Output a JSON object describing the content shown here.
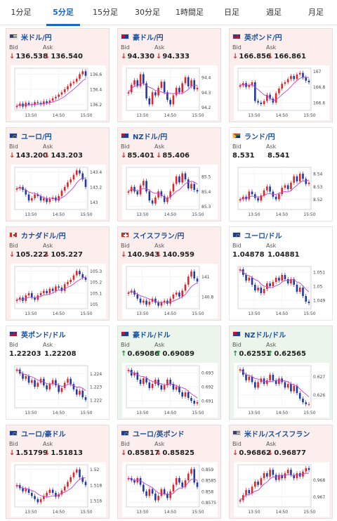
{
  "tabs": [
    {
      "label": "1分足",
      "active": false
    },
    {
      "label": "5分足",
      "active": true
    },
    {
      "label": "15分足",
      "active": false
    },
    {
      "label": "30分足",
      "active": false
    },
    {
      "label": "1時間足",
      "active": false
    },
    {
      "label": "日足",
      "active": false
    },
    {
      "label": "週足",
      "active": false
    },
    {
      "label": "月足",
      "active": false
    }
  ],
  "labels": {
    "bid": "Bid",
    "ask": "Ask"
  },
  "colors": {
    "candle_up": "#e0252b",
    "candle_down": "#1f3aa8",
    "ma_line": "#c63fd4",
    "price_down": "#d0312d",
    "price_up": "#1d8f3a"
  },
  "pairs": [
    {
      "name": "米ドル/円",
      "flag": "us",
      "trend": "down",
      "bid": "136.538",
      "ask": "136.540",
      "chart_data": {
        "type": "candlestick",
        "x_ticks": [
          "13:50",
          "14:50",
          "15:50"
        ],
        "y_ticks": [
          136.2,
          136.4,
          136.6
        ],
        "ylim": [
          136.12,
          136.68
        ],
        "path": [
          136.18,
          136.21,
          136.17,
          136.22,
          136.2,
          136.19,
          136.23,
          136.22,
          136.2,
          136.24,
          136.22,
          136.25,
          136.28,
          136.3,
          136.33,
          136.36,
          136.4,
          136.44,
          136.48,
          136.5,
          136.54,
          136.6,
          136.64,
          136.58
        ]
      }
    },
    {
      "name": "豪ドル/円",
      "flag": "au",
      "trend": "down",
      "bid": "94.330",
      "ask": "94.333",
      "chart_data": {
        "type": "candlestick",
        "x_ticks": [
          "13:50",
          "14:50",
          "15:50"
        ],
        "y_ticks": [
          94.2,
          94.3,
          94.4
        ],
        "ylim": [
          94.18,
          94.46
        ],
        "path": [
          94.3,
          94.35,
          94.38,
          94.34,
          94.42,
          94.36,
          94.26,
          94.22,
          94.3,
          94.28,
          94.33,
          94.37,
          94.3,
          94.25,
          94.22,
          94.28,
          94.33,
          94.3,
          94.36,
          94.4,
          94.34,
          94.38,
          94.32,
          94.33
        ]
      }
    },
    {
      "name": "英ポンド/円",
      "flag": "gb",
      "trend": "down",
      "bid": "166.856",
      "ask": "166.861",
      "chart_data": {
        "type": "candlestick",
        "x_ticks": [
          "13:50",
          "14:50",
          "15:50"
        ],
        "y_ticks": [
          166.6,
          166.8,
          167
        ],
        "ylim": [
          166.5,
          167.04
        ],
        "path": [
          166.82,
          166.85,
          166.8,
          166.82,
          166.86,
          166.62,
          166.6,
          166.58,
          166.62,
          166.7,
          166.65,
          166.6,
          166.72,
          166.78,
          166.84,
          166.86,
          166.9,
          166.94,
          166.9,
          166.96,
          166.98,
          166.92,
          166.88,
          166.86
        ]
      }
    },
    {
      "name": "ユーロ/円",
      "flag": "eu",
      "trend": "down",
      "bid": "143.200",
      "ask": "143.203",
      "chart_data": {
        "type": "candlestick",
        "x_ticks": [
          "13:50",
          "14:50",
          "15:50"
        ],
        "y_ticks": [
          143,
          143.2,
          143.4
        ],
        "ylim": [
          142.9,
          143.46
        ],
        "path": [
          143.18,
          143.2,
          143.16,
          143.1,
          143.02,
          143.05,
          143.1,
          143.08,
          143.02,
          143.05,
          143.0,
          143.04,
          143.06,
          143.02,
          143.08,
          143.15,
          143.2,
          143.26,
          143.3,
          143.36,
          143.42,
          143.38,
          143.3,
          143.2
        ]
      }
    },
    {
      "name": "NZドル/円",
      "flag": "nz",
      "trend": "down",
      "bid": "85.401",
      "ask": "85.406",
      "chart_data": {
        "type": "candlestick",
        "x_ticks": [
          "13:50",
          "14:50",
          "15:50"
        ],
        "y_ticks": [
          85.3,
          85.4,
          85.5
        ],
        "ylim": [
          85.28,
          85.56
        ],
        "path": [
          85.4,
          85.43,
          85.4,
          85.38,
          85.44,
          85.47,
          85.4,
          85.34,
          85.32,
          85.36,
          85.4,
          85.37,
          85.33,
          85.36,
          85.4,
          85.45,
          85.5,
          85.46,
          85.52,
          85.48,
          85.42,
          85.45,
          85.41,
          85.4
        ]
      }
    },
    {
      "name": "ランド/円",
      "flag": "za",
      "trend": "flat",
      "bid": "8.531",
      "ask": "8.541",
      "chart_data": {
        "type": "candlestick",
        "x_ticks": [
          "13:50",
          "14:50",
          "15:50"
        ],
        "y_ticks": [
          8.52,
          8.53,
          8.54
        ],
        "ylim": [
          8.512,
          8.545
        ],
        "path": [
          8.52,
          8.522,
          8.52,
          8.526,
          8.524,
          8.521,
          8.519,
          8.523,
          8.527,
          8.53,
          8.526,
          8.522,
          8.52,
          8.524,
          8.529,
          8.531,
          8.528,
          8.533,
          8.538,
          8.534,
          8.54,
          8.536,
          8.532,
          8.533
        ]
      }
    },
    {
      "name": "カナダドル/円",
      "flag": "ca",
      "trend": "down",
      "bid": "105.222",
      "ask": "105.227",
      "chart_data": {
        "type": "candlestick",
        "x_ticks": [
          "13:50",
          "14:50",
          "15:50"
        ],
        "y_ticks": [
          105,
          105.1,
          105.2,
          105.3
        ],
        "ylim": [
          104.96,
          105.34
        ],
        "path": [
          105.04,
          105.06,
          105.03,
          105.08,
          105.1,
          105.06,
          105.04,
          105.08,
          105.1,
          105.12,
          105.1,
          105.14,
          105.12,
          105.16,
          105.15,
          105.12,
          105.18,
          105.2,
          105.22,
          105.26,
          105.3,
          105.27,
          105.24,
          105.22
        ]
      }
    },
    {
      "name": "スイスフラン/円",
      "flag": "ch",
      "trend": "down",
      "bid": "140.943",
      "ask": "140.959",
      "chart_data": {
        "type": "candlestick",
        "x_ticks": [
          "13:50",
          "14:50",
          "15:50"
        ],
        "y_ticks": [
          140.8,
          141
        ],
        "ylim": [
          140.68,
          141.1
        ],
        "path": [
          140.84,
          140.86,
          140.82,
          140.78,
          140.74,
          140.76,
          140.72,
          140.75,
          140.78,
          140.74,
          140.71,
          140.74,
          140.76,
          140.73,
          140.78,
          140.82,
          140.84,
          140.8,
          140.86,
          140.92,
          141.0,
          141.05,
          140.98,
          140.95
        ]
      }
    },
    {
      "name": "ユーロ/ドル",
      "flag": "eu",
      "trend": "flat",
      "bid": "1.04878",
      "ask": "1.04881",
      "chart_data": {
        "type": "candlestick",
        "x_ticks": [
          "13:50",
          "14:50",
          "15:50"
        ],
        "y_ticks": [
          1.049,
          1.05,
          1.051
        ],
        "ylim": [
          1.0484,
          1.0514
        ],
        "path": [
          1.0512,
          1.0508,
          1.0504,
          1.0506,
          1.0501,
          1.0497,
          1.0499,
          1.0495,
          1.0498,
          1.0502,
          1.05,
          1.0503,
          1.0506,
          1.0504,
          1.0508,
          1.0505,
          1.0502,
          1.0505,
          1.0501,
          1.0496,
          1.0499,
          1.0493,
          1.0489,
          1.0488
        ]
      }
    },
    {
      "name": "英ポンド/ドル",
      "flag": "gb",
      "trend": "flat",
      "bid": "1.22203",
      "ask": "1.22208",
      "chart_data": {
        "type": "candlestick",
        "x_ticks": [
          "13:50",
          "14:50",
          "15:50"
        ],
        "y_ticks": [
          1.222,
          1.223,
          1.224
        ],
        "ylim": [
          1.2214,
          1.2246
        ],
        "path": [
          1.2243,
          1.224,
          1.2236,
          1.2238,
          1.2233,
          1.2235,
          1.223,
          1.2233,
          1.2236,
          1.2231,
          1.2228,
          1.2232,
          1.2235,
          1.2231,
          1.2226,
          1.2229,
          1.2233,
          1.2236,
          1.2232,
          1.2228,
          1.2224,
          1.2227,
          1.2222,
          1.222
        ]
      }
    },
    {
      "name": "豪ドル/ドル",
      "flag": "au",
      "trend": "up",
      "bid": "0.69086",
      "ask": "0.69089",
      "chart_data": {
        "type": "candlestick",
        "x_ticks": [
          "13:50",
          "14:50",
          "15:50"
        ],
        "y_ticks": [
          0.691,
          0.692,
          0.693
        ],
        "ylim": [
          0.6905,
          0.6935
        ],
        "path": [
          0.6932,
          0.6928,
          0.693,
          0.6925,
          0.6922,
          0.6926,
          0.6923,
          0.6919,
          0.6922,
          0.6925,
          0.6921,
          0.6918,
          0.6921,
          0.6925,
          0.6922,
          0.6918,
          0.692,
          0.6916,
          0.6913,
          0.6916,
          0.6912,
          0.691,
          0.6908,
          0.6909
        ]
      }
    },
    {
      "name": "NZドル/ドル",
      "flag": "nz",
      "trend": "up",
      "bid": "0.62551",
      "ask": "0.62565",
      "chart_data": {
        "type": "candlestick",
        "x_ticks": [
          "13:50",
          "14:50",
          "15:50"
        ],
        "y_ticks": [
          0.626,
          0.627
        ],
        "ylim": [
          0.6253,
          0.6276
        ],
        "path": [
          0.6274,
          0.6271,
          0.6268,
          0.627,
          0.6267,
          0.6264,
          0.6267,
          0.6269,
          0.6266,
          0.6268,
          0.6271,
          0.6268,
          0.6266,
          0.6269,
          0.6267,
          0.6264,
          0.6266,
          0.6262,
          0.6265,
          0.6261,
          0.6258,
          0.6256,
          0.6255,
          0.6255
        ]
      }
    },
    {
      "name": "ユーロ/豪ドル",
      "flag": "eu",
      "trend": "down",
      "bid": "1.51799",
      "ask": "1.51813",
      "chart_data": {
        "type": "candlestick",
        "x_ticks": [
          "13:50",
          "14:50",
          "15:50"
        ],
        "y_ticks": [
          1.516,
          1.518,
          1.52
        ],
        "ylim": [
          1.5152,
          1.5206
        ],
        "path": [
          1.518,
          1.5176,
          1.5172,
          1.5175,
          1.517,
          1.5166,
          1.5162,
          1.5158,
          1.5162,
          1.5166,
          1.517,
          1.5174,
          1.517,
          1.5165,
          1.5168,
          1.5173,
          1.5178,
          1.5184,
          1.519,
          1.5196,
          1.52,
          1.519,
          1.5184,
          1.518
        ]
      }
    },
    {
      "name": "ユーロ/英ポンド",
      "flag": "eu",
      "trend": "down",
      "bid": "0.85817",
      "ask": "0.85825",
      "chart_data": {
        "type": "candlestick",
        "x_ticks": [
          "13:50",
          "14:50",
          "15:50"
        ],
        "y_ticks": [
          0.8575,
          0.858,
          0.8585,
          0.859
        ],
        "ylim": [
          0.8573,
          0.8592
        ],
        "path": [
          0.8586,
          0.8585,
          0.8584,
          0.8586,
          0.8583,
          0.858,
          0.8578,
          0.8581,
          0.8579,
          0.8576,
          0.8578,
          0.8581,
          0.8579,
          0.8577,
          0.858,
          0.8583,
          0.8586,
          0.8584,
          0.8582,
          0.8585,
          0.8588,
          0.859,
          0.8584,
          0.8582
        ]
      }
    },
    {
      "name": "米ドル/スイスフラン",
      "flag": "us",
      "trend": "down",
      "bid": "0.96862",
      "ask": "0.96877",
      "chart_data": {
        "type": "candlestick",
        "x_ticks": [
          "13:50",
          "14:50",
          "15:50"
        ],
        "y_ticks": [
          0.967,
          0.968
        ],
        "ylim": [
          0.9664,
          0.9689
        ],
        "path": [
          0.9668,
          0.9671,
          0.9674,
          0.9672,
          0.9676,
          0.9679,
          0.9677,
          0.9681,
          0.9684,
          0.9682,
          0.9686,
          0.9683,
          0.968,
          0.9683,
          0.9681,
          0.9684,
          0.9686,
          0.9683,
          0.9681,
          0.9684,
          0.9682,
          0.9685,
          0.9687,
          0.9686
        ]
      }
    }
  ]
}
